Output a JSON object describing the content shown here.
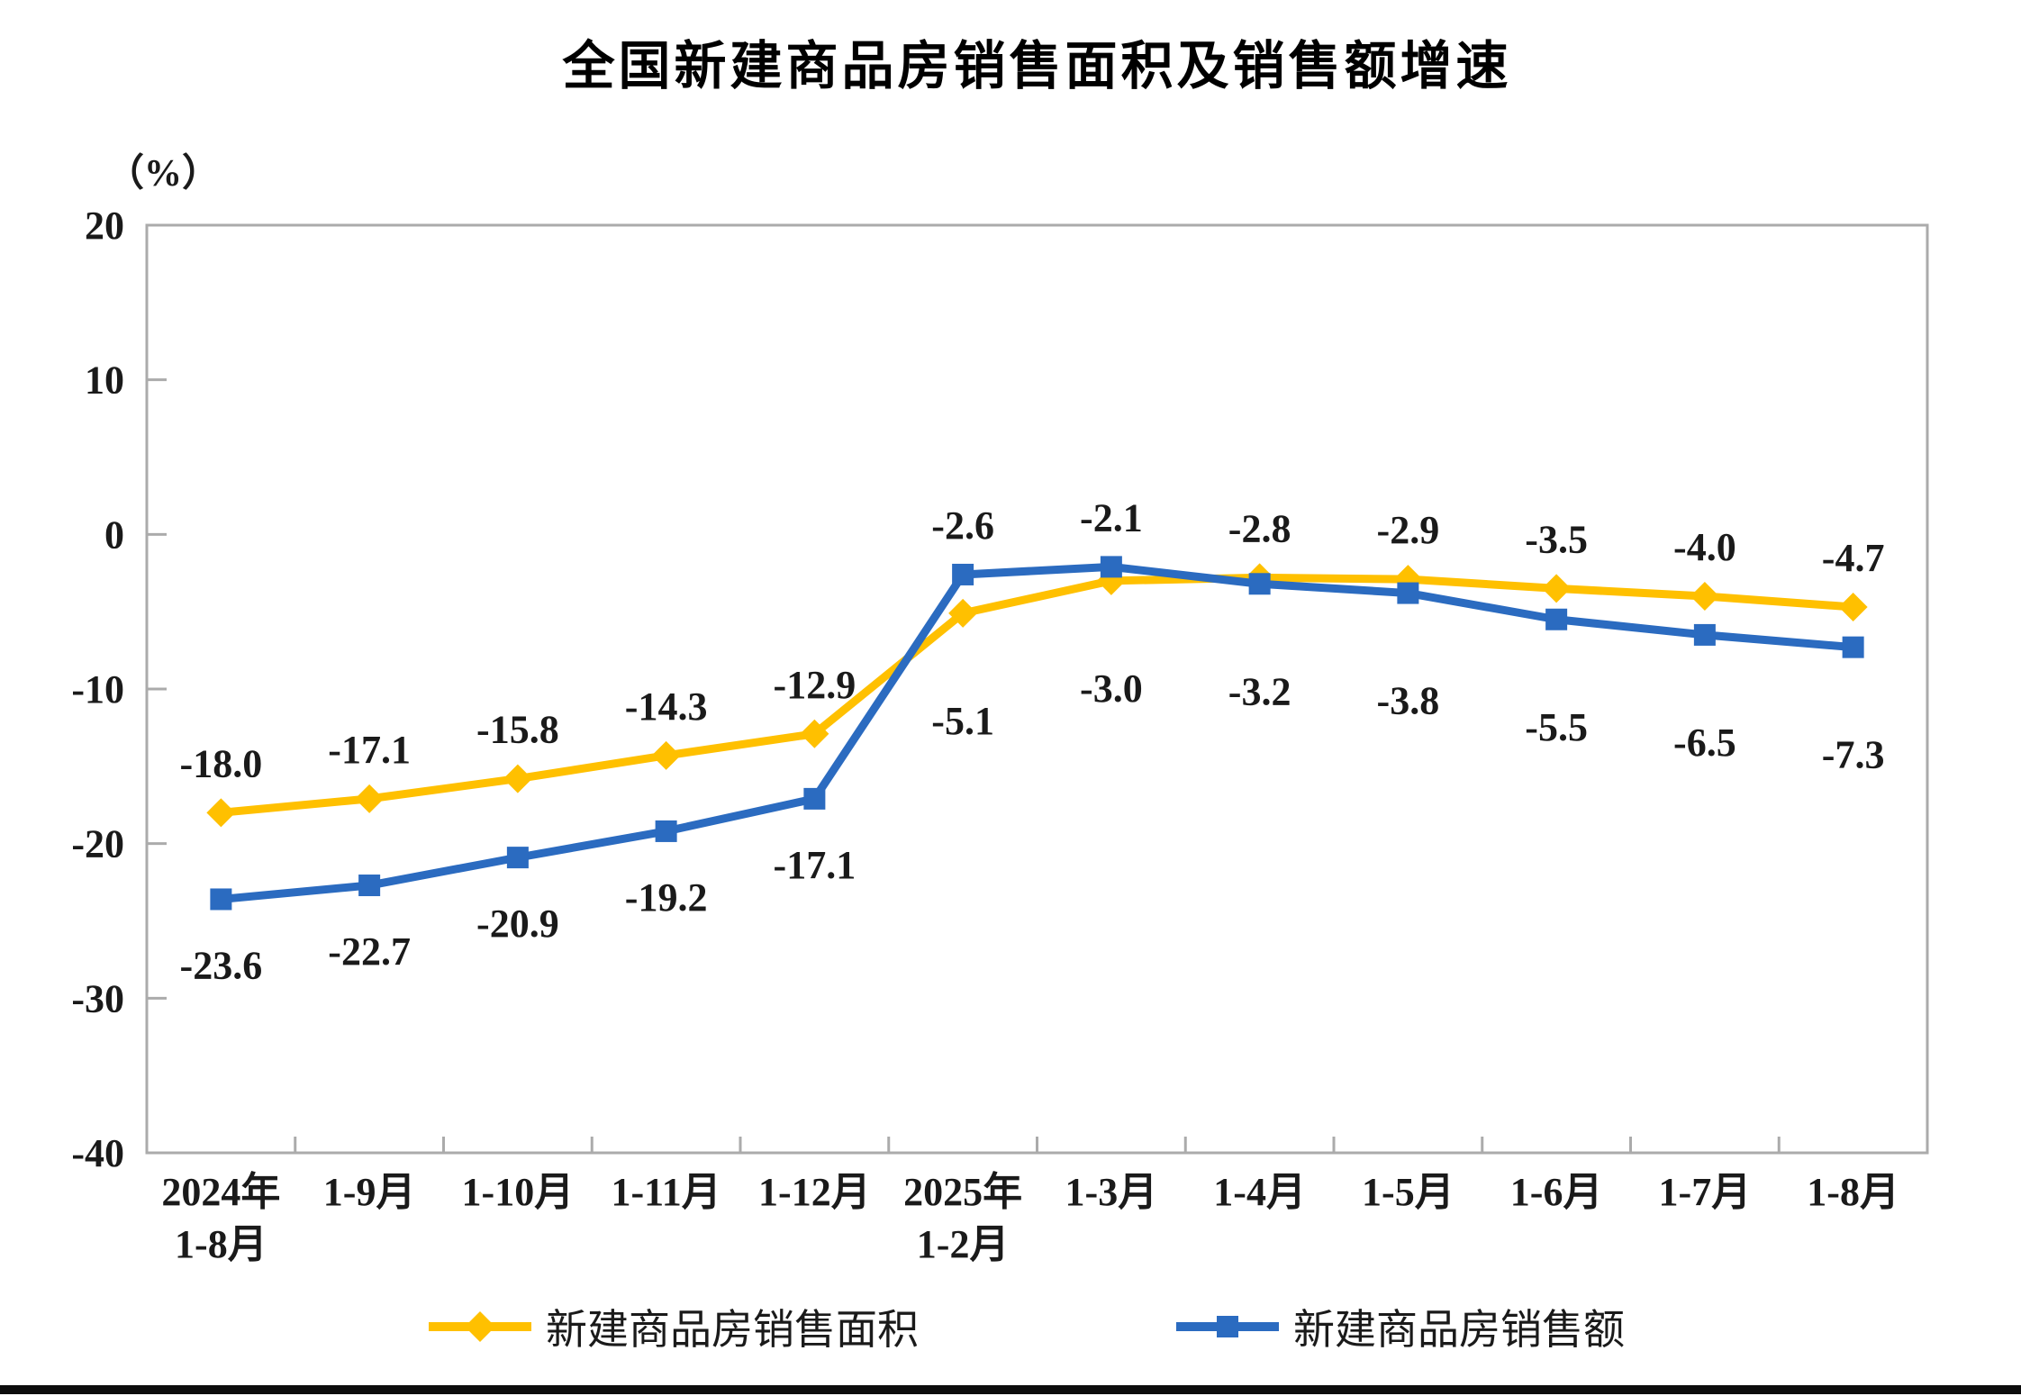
{
  "page": {
    "title": "全国新建商品房销售面积及销售额增速",
    "y_axis_unit": "（%）"
  },
  "colors": {
    "series_area": "#FFC000",
    "series_value": "#2B6BC0",
    "axis": "#ABABAB",
    "label_text": "#1a1a1a"
  },
  "chart_data": {
    "type": "line",
    "title": "全国新建商品房销售面积及销售额增速",
    "ylabel": "（%）",
    "ylim": [
      -40,
      20
    ],
    "yticks": [
      20,
      10,
      0,
      -10,
      -20,
      -30,
      -40
    ],
    "grid": false,
    "legend_position": "bottom",
    "categories": [
      "2024年\n1-8月",
      "1-9月",
      "1-10月",
      "1-11月",
      "1-12月",
      "2025年\n1-2月",
      "1-3月",
      "1-4月",
      "1-5月",
      "1-6月",
      "1-7月",
      "1-8月"
    ],
    "series": [
      {
        "name": "新建商品房销售面积",
        "color": "#FFC000",
        "marker": "diamond",
        "values": [
          -18.0,
          -17.1,
          -15.8,
          -14.3,
          -12.9,
          -5.1,
          -3.0,
          -2.8,
          -2.9,
          -3.5,
          -4.0,
          -4.7
        ],
        "labels": [
          "-18.0",
          "-17.1",
          "-15.8",
          "-14.3",
          "-12.9",
          "-5.1",
          "-3.0",
          "-2.8",
          "-2.9",
          "-3.5",
          "-4.0",
          "-4.7"
        ],
        "label_sides": [
          "above",
          "above",
          "above",
          "above",
          "above",
          "below",
          "below",
          "above",
          "above",
          "above",
          "above",
          "above"
        ]
      },
      {
        "name": "新建商品房销售额",
        "color": "#2B6BC0",
        "marker": "square",
        "values": [
          -23.6,
          -22.7,
          -20.9,
          -19.2,
          -17.1,
          -2.6,
          -2.1,
          -3.2,
          -3.8,
          -5.5,
          -6.5,
          -7.3
        ],
        "labels": [
          "-23.6",
          "-22.7",
          "-20.9",
          "-19.2",
          "-17.1",
          "-2.6",
          "-2.1",
          "-3.2",
          "-3.8",
          "-5.5",
          "-6.5",
          "-7.3"
        ],
        "label_sides": [
          "below",
          "below",
          "below",
          "below",
          "below",
          "above",
          "above",
          "below",
          "below",
          "below",
          "below",
          "below"
        ]
      }
    ]
  },
  "legend": {
    "items": [
      {
        "label": "新建商品房销售面积",
        "color": "#FFC000",
        "marker": "diamond"
      },
      {
        "label": "新建商品房销售额",
        "color": "#2B6BC0",
        "marker": "square"
      }
    ]
  }
}
